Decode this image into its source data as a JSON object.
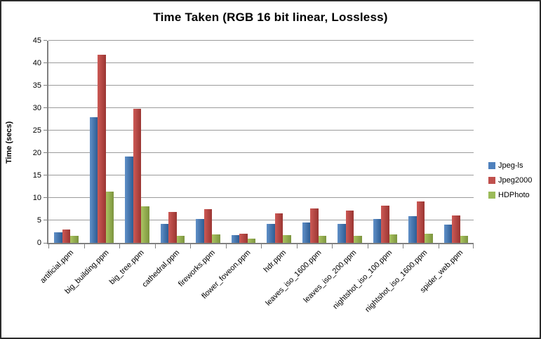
{
  "window": {
    "background": "#ffffff",
    "frame_border_color": "#2b2b2b",
    "axis_color": "#808080",
    "gridline_color": "#9b9b9b"
  },
  "chart_data": {
    "type": "bar",
    "title": "Time Taken (RGB 16 bit linear, Lossless)",
    "xlabel": "",
    "ylabel": "Time (secs)",
    "ylim": [
      0,
      45
    ],
    "y_ticks": [
      0,
      5,
      10,
      15,
      20,
      25,
      30,
      35,
      40,
      45
    ],
    "grid": true,
    "legend_position": "right",
    "categories": [
      "artificial.ppm",
      "big_building.ppm",
      "big_tree.ppm",
      "cathedral.ppm",
      "fireworks.ppm",
      "flower_foveon.ppm",
      "hdr.ppm",
      "leaves_iso_1600.ppm",
      "leaves_iso_200.ppm",
      "nightshot_iso_100.ppm",
      "nightshot_iso_1600.ppm",
      "spider_web.ppm"
    ],
    "series": [
      {
        "name": "Jpeg-ls",
        "color": "#4F81BD",
        "color_light": "#6090C8",
        "color_dark": "#2E5D94",
        "values": [
          2.4,
          28.0,
          19.2,
          4.3,
          5.3,
          1.8,
          4.2,
          4.5,
          4.2,
          5.3,
          5.9,
          4.1
        ]
      },
      {
        "name": "Jpeg2000",
        "color": "#C0504D",
        "color_light": "#CD5A56",
        "color_dark": "#9A3532",
        "values": [
          3.0,
          41.9,
          29.8,
          6.9,
          7.5,
          2.1,
          6.6,
          7.7,
          7.2,
          8.3,
          9.3,
          6.1
        ]
      },
      {
        "name": "HDPhoto",
        "color": "#9BBB59",
        "color_light": "#ABC461",
        "color_dark": "#7B943E",
        "values": [
          1.6,
          11.4,
          8.2,
          1.5,
          1.9,
          0.9,
          1.7,
          1.6,
          1.5,
          1.9,
          2.1,
          1.6
        ]
      }
    ]
  }
}
